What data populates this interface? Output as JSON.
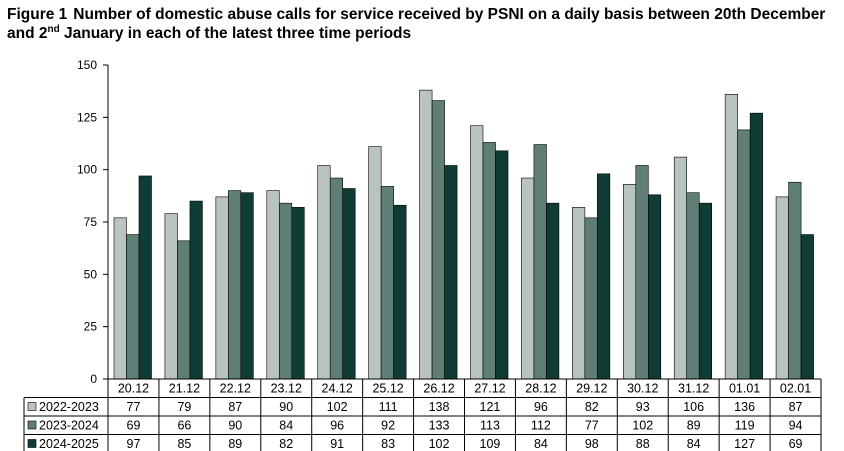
{
  "figure": {
    "number": "Figure 1",
    "title_part1": "Number of domestic abuse calls for service received by PSNI on a daily basis between 20th December and 2",
    "title_sup": "nd",
    "title_part2": " January in each of the latest three time periods"
  },
  "colors": {
    "s1": "#b8c4bd",
    "s2": "#5f7e76",
    "s3": "#0f3d35",
    "grid": "#000000"
  },
  "chart_data": {
    "type": "bar",
    "title": "Number of domestic abuse calls for service received by PSNI on a daily basis between 20th December and 2nd January in each of the latest three time periods",
    "ylim": [
      0,
      150
    ],
    "yticks": [
      0,
      25,
      50,
      75,
      100,
      125,
      150
    ],
    "categories": [
      "20.12",
      "21.12",
      "22.12",
      "23.12",
      "24.12",
      "25.12",
      "26.12",
      "27.12",
      "28.12",
      "29.12",
      "30.12",
      "31.12",
      "01.01",
      "02.01"
    ],
    "series": [
      {
        "name": "2022-2023",
        "values": [
          77,
          79,
          87,
          90,
          102,
          111,
          138,
          121,
          96,
          82,
          93,
          106,
          136,
          87
        ]
      },
      {
        "name": "2023-2024",
        "values": [
          69,
          66,
          90,
          84,
          96,
          92,
          133,
          113,
          112,
          77,
          102,
          89,
          119,
          94
        ]
      },
      {
        "name": "2024-2025",
        "values": [
          97,
          85,
          89,
          82,
          91,
          83,
          102,
          109,
          84,
          98,
          88,
          84,
          127,
          69
        ]
      }
    ],
    "legend": "data table below chart"
  }
}
